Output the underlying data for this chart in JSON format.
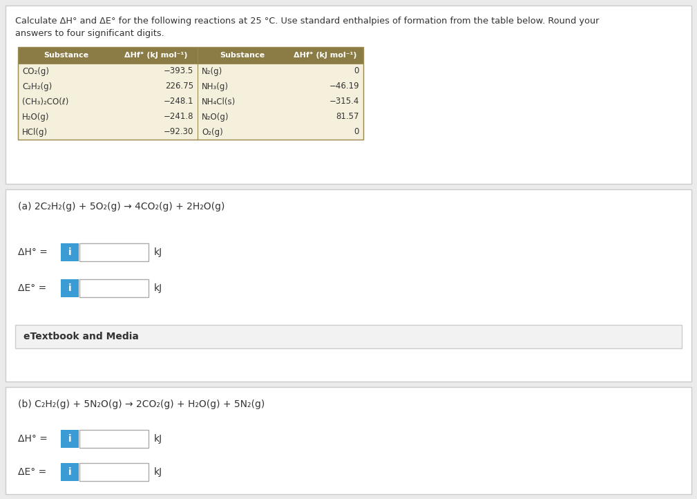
{
  "title_line1": "Calculate ΔH° and ΔE° for the following reactions at 25 °C. Use standard enthalpies of formation from the table below. Round your",
  "title_line2": "answers to four significant digits.",
  "header_col1": "Substance",
  "header_col2": "ΔHf° (kJ mol⁻¹)",
  "header_col3": "Substance",
  "header_col4": "ΔHf° (kJ mol⁻¹)",
  "left_substances": [
    "CO₂(g)",
    "C₂H₂(g)",
    "(CH₃)₂CO(ℓ)",
    "H₂O(g)",
    "HCl(g)"
  ],
  "left_values": [
    "−393.5",
    "226.75",
    "−248.1",
    "−241.8",
    "−92.30"
  ],
  "right_substances": [
    "N₂(g)",
    "NH₃(g)",
    "NH₄Cl(s)",
    "N₂O(g)",
    "O₂(g)"
  ],
  "right_values": [
    "0",
    "−46.19",
    "−315.4",
    "81.57",
    "0"
  ],
  "reaction_a": "(a) 2C₂H₂(g) + 5O₂(g) → 4CO₂(g) + 2H₂O(g)",
  "reaction_b": "(b) C₂H₂(g) + 5N₂O(g) → 2CO₂(g) + H₂O(g) + 5N₂(g)",
  "dH_label": "ΔH° =",
  "dE_label": "ΔE° =",
  "kJ_label": "kJ",
  "etextbook_label": "eTextbook and Media",
  "info_btn_color": "#3A9BD5",
  "info_btn_text": "i",
  "outer_bg": "#EBEBEB",
  "panel_bg": "#FFFFFF",
  "panel_border": "#CCCCCC",
  "text_color": "#333333",
  "table_header_bg": "#8B7B45",
  "table_body_bg": "#F5F0DC",
  "table_border_color": "#9B8B55",
  "input_box_bg": "#FFFFFF",
  "input_box_border": "#AAAAAA",
  "etextbook_bg": "#F2F2F2",
  "etextbook_border": "#CCCCCC"
}
